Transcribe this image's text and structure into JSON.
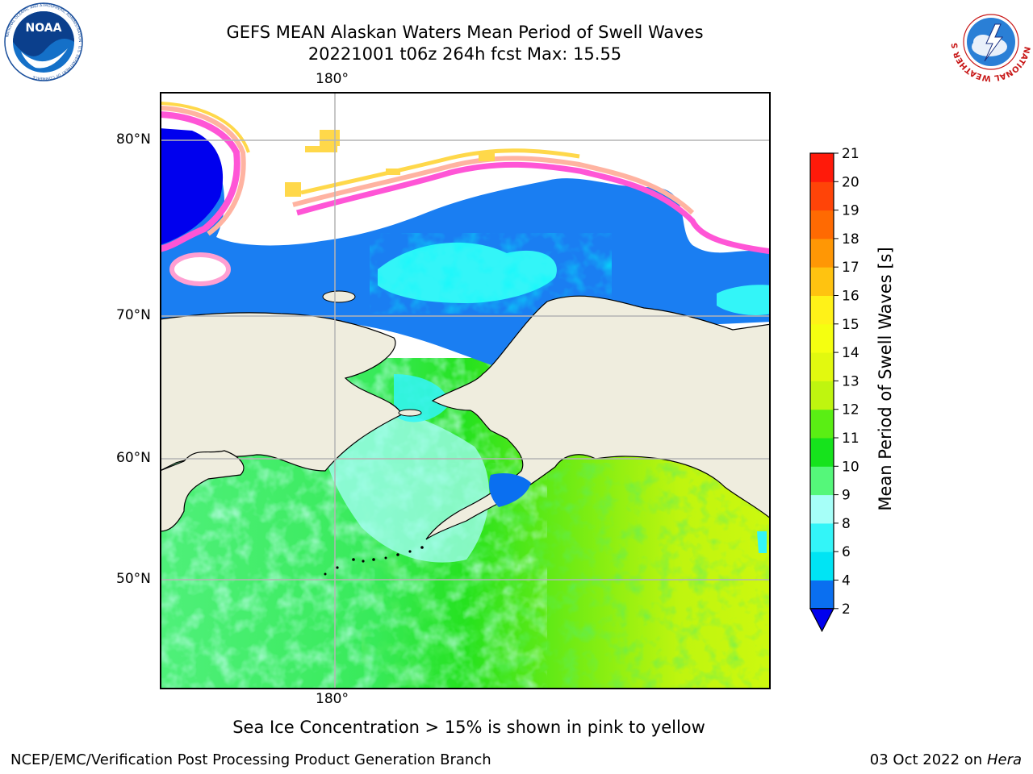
{
  "title_line1": "GEFS MEAN Alaskan Waters Mean Period of Swell Waves",
  "title_line2": "20221001 t06z 264h fcst   Max: 15.55",
  "map": {
    "lat_labels": [
      "80°N",
      "70°N",
      "60°N",
      "50°N"
    ],
    "lon_label_top": "180°",
    "lon_label_bottom": "180°",
    "land_color": "#efedde",
    "ocean_north_color": "#1a7ef2",
    "ice_edge_colors": [
      "#ff55d6",
      "#ffb3a1",
      "#ffd84a"
    ],
    "grid": "on"
  },
  "colorbar": {
    "title": "Mean Period of Swell Waves [s]",
    "ticks": [
      "2",
      "4",
      "6",
      "8",
      "9",
      "10",
      "11",
      "12",
      "13",
      "14",
      "15",
      "16",
      "17",
      "18",
      "19",
      "20",
      "21"
    ],
    "colors": [
      "#0a6ff0",
      "#00e4f4",
      "#33f5f8",
      "#a6fff8",
      "#55f77a",
      "#16e31c",
      "#5aee14",
      "#bff50f",
      "#e2f90f",
      "#f5ff10",
      "#fff218",
      "#ffc310",
      "#ff9705",
      "#ff6a02",
      "#ff4408",
      "#ff1a0a"
    ],
    "under_color": "#0000ee"
  },
  "caption": "Sea Ice Concentration > 15% is shown in pink to yellow",
  "footer_left": "NCEP/EMC/Verification Post Processing Product Generation Branch",
  "footer_date": "03 Oct 2022 on ",
  "footer_machine": "Hera",
  "logos": {
    "noaa_text": "NOAA",
    "noaa_ring_text": "NATIONAL OCEANIC AND ATMOSPHERIC ADMINISTRATION · U.S. DEPARTMENT OF COMMERCE",
    "nws_ring_text": "NATIONAL WEATHER SERVICE"
  }
}
